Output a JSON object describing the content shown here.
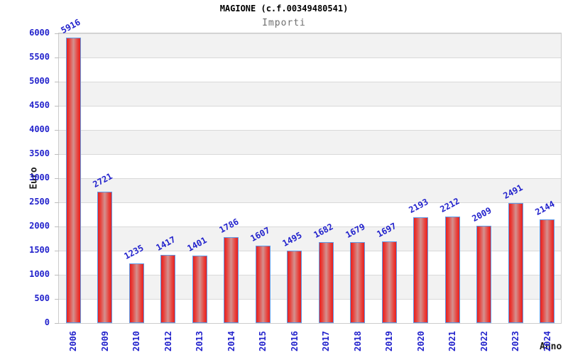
{
  "header": {
    "title": "MAGIONE (c.f.00349480541)",
    "subtitle": "Importi"
  },
  "chart_data": {
    "type": "bar",
    "title": "MAGIONE (c.f.00349480541)",
    "subtitle": "Importi",
    "xlabel": "Anno",
    "ylabel": "Euro",
    "categories": [
      "2006",
      "2009",
      "2010",
      "2012",
      "2013",
      "2014",
      "2015",
      "2016",
      "2017",
      "2018",
      "2019",
      "2020",
      "2021",
      "2022",
      "2023",
      "2024"
    ],
    "values": [
      5916,
      2721,
      1235,
      1417,
      1401,
      1786,
      1607,
      1495,
      1682,
      1679,
      1697,
      2193,
      2212,
      2009,
      2491,
      2144
    ],
    "ylim": [
      0,
      6000
    ],
    "ytick_step": 500,
    "yticks": [
      0,
      500,
      1000,
      1500,
      2000,
      2500,
      3000,
      3500,
      4000,
      4500,
      5000,
      5500,
      6000
    ],
    "grid": "horizontal-bands-alternating",
    "legend": "none",
    "colors": {
      "axis_text": "#2222cc",
      "value_label": "#2222cc",
      "bar_edge": "#e62020",
      "bar_center": "#d4918f",
      "bar_border": "#5f9ae6",
      "band_gray": "#f2f2f2",
      "band_white": "#ffffff",
      "gridline": "#d9d9d9",
      "plot_border": "#cccccc",
      "title_color": "#000000",
      "subtitle_color": "#6e6e6e",
      "axis_title_color": "#1a1a1a"
    }
  }
}
